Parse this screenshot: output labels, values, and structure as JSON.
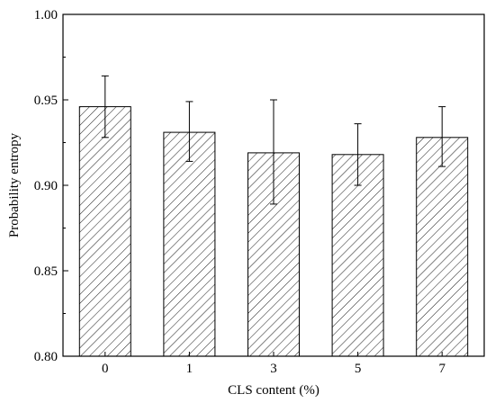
{
  "chart_data": {
    "type": "bar",
    "xlabel": "CLS content (%)",
    "ylabel": "Probability entropy",
    "categories": [
      "0",
      "1",
      "3",
      "5",
      "7"
    ],
    "values": [
      0.946,
      0.931,
      0.919,
      0.918,
      0.928
    ],
    "error_upper": [
      0.964,
      0.949,
      0.95,
      0.936,
      0.946
    ],
    "error_lower": [
      0.928,
      0.914,
      0.889,
      0.9,
      0.911
    ],
    "ylim": [
      0.8,
      1.0
    ],
    "yticks": [
      "0.80",
      "0.85",
      "0.90",
      "0.95",
      "1.00"
    ],
    "ytick_values": [
      0.8,
      0.85,
      0.9,
      0.95,
      1.0
    ],
    "grid": false,
    "bar_fill": "hatched",
    "colors": {
      "bar_stroke": "#000000",
      "hatch": "#000000",
      "background": "#ffffff"
    }
  }
}
